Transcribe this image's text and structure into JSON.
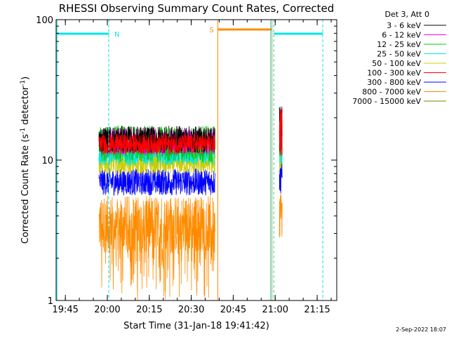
{
  "chart_data": {
    "type": "line",
    "title": "RHESSI Observing Summary Count Rates, Corrected",
    "xlabel": "Start Time (31-Jan-18 19:41:42)",
    "ylabel_main": "Corrected Count Rate (s",
    "ylabel_sup1": "-1",
    "ylabel_mid": " detector",
    "ylabel_sup2": "-1",
    "ylabel_end": ")",
    "y_scale": "log",
    "ylim": [
      1,
      100
    ],
    "xlim": [
      "19:41:42",
      "21:22:00"
    ],
    "x_ticks": [
      "19:45",
      "20:00",
      "20:15",
      "20:30",
      "20:45",
      "21:00",
      "21:15"
    ],
    "y_ticks": [
      "1",
      "10",
      "100"
    ],
    "legend_header": "Det 3, Att 0",
    "legend_position": "top-right outside",
    "date_stamp": "2-Sep-2022 18:07",
    "markers": [
      {
        "label": "N",
        "color": "#00e5ee",
        "kind": "night/eclipse"
      },
      {
        "label": "S",
        "color": "#ff8c00",
        "kind": "SAA"
      }
    ],
    "marker_times": {
      "N_start": "19:42:00",
      "N_end": "20:00:30",
      "S_start": "20:39:30",
      "S_end": "20:58:50",
      "N2_start": "20:59:30",
      "N2_end": "21:17:00",
      "dashed_1": "20:00:30",
      "dashed_2": "20:59:30",
      "dashed_3": "21:17:00",
      "solid_1": "19:42:00",
      "solid_2": "20:39:30",
      "solid_3": "20:58:50"
    },
    "series": [
      {
        "name": "3 - 6 keV",
        "color": "#000000",
        "level": 14.0,
        "spread": 1.25
      },
      {
        "name": "6 - 12 keV",
        "color": "#ff00ff",
        "level": 13.5,
        "spread": 1.25
      },
      {
        "name": "12 - 25 keV",
        "color": "#00cc00",
        "level": 13.0,
        "spread": 1.35
      },
      {
        "name": "25 - 50 keV",
        "color": "#00e5ee",
        "level": 11.0,
        "spread": 1.2
      },
      {
        "name": "50 - 100 keV",
        "color": "#cccc00",
        "level": 9.5,
        "spread": 1.2
      },
      {
        "name": "100 - 300 keV",
        "color": "#ff0000",
        "level": 13.0,
        "spread": 1.18
      },
      {
        "name": "300 - 800 keV",
        "color": "#0000ff",
        "level": 7.0,
        "spread": 1.25
      },
      {
        "name": "800 - 7000 keV",
        "color": "#ff8c00",
        "level": 3.5,
        "spread": 1.6
      },
      {
        "name": "7000 - 15000 keV",
        "color": "#808000",
        "level": 0.0,
        "spread": 1.0
      }
    ],
    "data_segments": [
      {
        "start": "19:57:00",
        "end": "20:38:30"
      },
      {
        "start": "21:01:30",
        "end": "21:02:30"
      }
    ]
  }
}
